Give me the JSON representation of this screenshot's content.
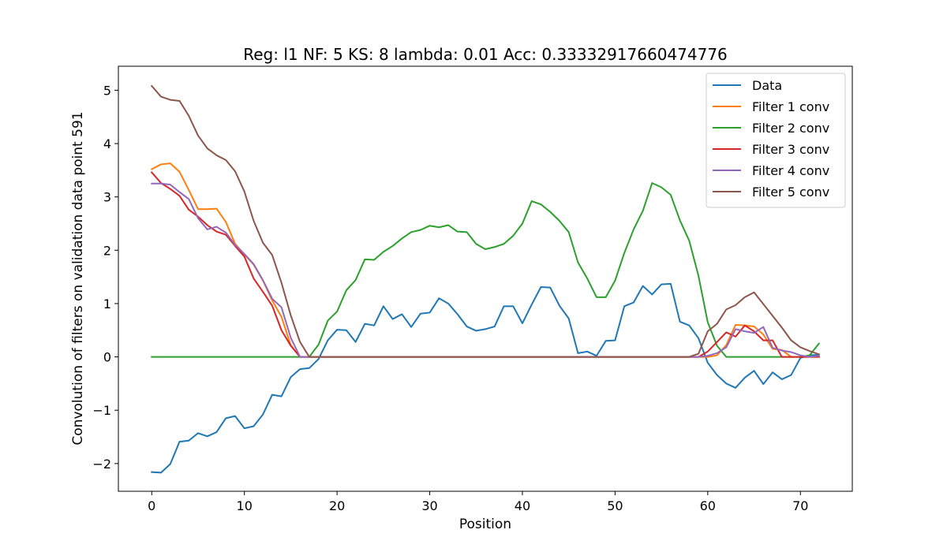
{
  "chart_data": {
    "type": "line",
    "title": "Reg: l1  NF: 5  KS: 8  lambda: 0.01 Acc: 0.33332917660474776",
    "xlabel": "Position",
    "ylabel": "Convolution of filters on validation data point 591",
    "xlim": [
      -3.6,
      75.6
    ],
    "ylim": [
      -2.52,
      5.45
    ],
    "xticks": [
      0,
      10,
      20,
      30,
      40,
      50,
      60,
      70
    ],
    "yticks": [
      -2,
      -1,
      0,
      1,
      2,
      3,
      4,
      5
    ],
    "xtick_labels": [
      "0",
      "10",
      "20",
      "30",
      "40",
      "50",
      "60",
      "70"
    ],
    "ytick_labels": [
      "−2",
      "−1",
      "0",
      "1",
      "2",
      "3",
      "4",
      "5"
    ],
    "grid": false,
    "legend_position": "upper right",
    "series": [
      {
        "name": "Data",
        "color": "#1f77b4",
        "x": [
          0,
          1,
          2,
          3,
          4,
          5,
          6,
          7,
          8,
          9,
          10,
          11,
          12,
          13,
          14,
          15,
          16,
          17,
          18,
          19,
          20,
          21,
          22,
          23,
          24,
          25,
          26,
          27,
          28,
          29,
          30,
          31,
          32,
          33,
          34,
          35,
          36,
          37,
          38,
          39,
          40,
          41,
          42,
          43,
          44,
          45,
          46,
          47,
          48,
          49,
          50,
          51,
          52,
          53,
          54,
          55,
          56,
          57,
          58,
          59,
          60,
          61,
          62,
          63,
          64,
          65,
          66,
          67,
          68,
          69,
          70,
          71,
          72
        ],
        "values": [
          -2.16,
          -2.17,
          -2.01,
          -1.59,
          -1.57,
          -1.43,
          -1.49,
          -1.41,
          -1.15,
          -1.11,
          -1.34,
          -1.3,
          -1.08,
          -0.71,
          -0.74,
          -0.38,
          -0.23,
          -0.21,
          -0.04,
          0.31,
          0.51,
          0.5,
          0.28,
          0.62,
          0.59,
          0.95,
          0.71,
          0.8,
          0.56,
          0.81,
          0.83,
          1.1,
          1.0,
          0.8,
          0.57,
          0.49,
          0.52,
          0.57,
          0.95,
          0.95,
          0.63,
          0.98,
          1.31,
          1.3,
          0.96,
          0.72,
          0.07,
          0.1,
          0.02,
          0.3,
          0.31,
          0.95,
          1.02,
          1.33,
          1.17,
          1.36,
          1.37,
          0.66,
          0.59,
          0.35,
          -0.11,
          -0.34,
          -0.5,
          -0.58,
          -0.39,
          -0.26,
          -0.51,
          -0.29,
          -0.42,
          -0.34,
          -0.02,
          0.03,
          0.04
        ]
      },
      {
        "name": "Filter 1 conv",
        "color": "#ff7f0e",
        "x": [
          0,
          1,
          2,
          3,
          4,
          5,
          6,
          7,
          8,
          9,
          10,
          11,
          12,
          13,
          14,
          15,
          16,
          17,
          18,
          19,
          20,
          21,
          22,
          23,
          24,
          25,
          26,
          27,
          28,
          29,
          30,
          31,
          32,
          33,
          34,
          35,
          36,
          37,
          38,
          39,
          40,
          41,
          42,
          43,
          44,
          45,
          46,
          47,
          48,
          49,
          50,
          51,
          52,
          53,
          54,
          55,
          56,
          57,
          58,
          59,
          60,
          61,
          62,
          63,
          64,
          65,
          66,
          67,
          68,
          69,
          70,
          71,
          72
        ],
        "values": [
          3.52,
          3.61,
          3.63,
          3.47,
          3.13,
          2.77,
          2.77,
          2.78,
          2.53,
          2.12,
          1.92,
          1.73,
          1.43,
          1.06,
          0.75,
          0.22,
          0,
          0,
          0,
          0,
          0,
          0,
          0,
          0,
          0,
          0,
          0,
          0,
          0,
          0,
          0,
          0,
          0,
          0,
          0,
          0,
          0,
          0,
          0,
          0,
          0,
          0,
          0,
          0,
          0,
          0,
          0,
          0,
          0,
          0,
          0,
          0,
          0,
          0,
          0,
          0,
          0,
          0,
          0,
          0,
          0,
          0.03,
          0.22,
          0.6,
          0.59,
          0.57,
          0.42,
          0.15,
          0.13,
          0,
          0,
          0,
          0
        ]
      },
      {
        "name": "Filter 2 conv",
        "color": "#2ca02c",
        "x": [
          0,
          1,
          2,
          3,
          4,
          5,
          6,
          7,
          8,
          9,
          10,
          11,
          12,
          13,
          14,
          15,
          16,
          17,
          18,
          19,
          20,
          21,
          22,
          23,
          24,
          25,
          26,
          27,
          28,
          29,
          30,
          31,
          32,
          33,
          34,
          35,
          36,
          37,
          38,
          39,
          40,
          41,
          42,
          43,
          44,
          45,
          46,
          47,
          48,
          49,
          50,
          51,
          52,
          53,
          54,
          55,
          56,
          57,
          58,
          59,
          60,
          61,
          62,
          63,
          64,
          65,
          66,
          67,
          68,
          69,
          70,
          71,
          72
        ],
        "values": [
          0,
          0,
          0,
          0,
          0,
          0,
          0,
          0,
          0,
          0,
          0,
          0,
          0,
          0,
          0,
          0,
          0,
          0,
          0.23,
          0.68,
          0.85,
          1.25,
          1.44,
          1.83,
          1.82,
          1.97,
          2.08,
          2.22,
          2.34,
          2.38,
          2.46,
          2.43,
          2.47,
          2.35,
          2.34,
          2.12,
          2.02,
          2.06,
          2.12,
          2.27,
          2.5,
          2.92,
          2.86,
          2.72,
          2.55,
          2.34,
          1.77,
          1.47,
          1.12,
          1.12,
          1.43,
          1.95,
          2.39,
          2.74,
          3.26,
          3.18,
          3.04,
          2.56,
          2.18,
          1.52,
          0.65,
          0.21,
          0,
          0,
          0,
          0,
          0,
          0,
          0,
          0,
          0,
          0.03,
          0.25
        ]
      },
      {
        "name": "Filter 3 conv",
        "color": "#d62728",
        "x": [
          0,
          1,
          2,
          3,
          4,
          5,
          6,
          7,
          8,
          9,
          10,
          11,
          12,
          13,
          14,
          15,
          16,
          17,
          18,
          19,
          20,
          21,
          22,
          23,
          24,
          25,
          26,
          27,
          28,
          29,
          30,
          31,
          32,
          33,
          34,
          35,
          36,
          37,
          38,
          39,
          40,
          41,
          42,
          43,
          44,
          45,
          46,
          47,
          48,
          49,
          50,
          51,
          52,
          53,
          54,
          55,
          56,
          57,
          58,
          59,
          60,
          61,
          62,
          63,
          64,
          65,
          66,
          67,
          68,
          69,
          70,
          71,
          72
        ],
        "values": [
          3.46,
          3.26,
          3.15,
          3.02,
          2.76,
          2.63,
          2.47,
          2.35,
          2.29,
          2.08,
          1.88,
          1.47,
          1.22,
          0.96,
          0.5,
          0.21,
          0,
          0,
          0,
          0,
          0,
          0,
          0,
          0,
          0,
          0,
          0,
          0,
          0,
          0,
          0,
          0,
          0,
          0,
          0,
          0,
          0,
          0,
          0,
          0,
          0,
          0,
          0,
          0,
          0,
          0,
          0,
          0,
          0,
          0,
          0,
          0,
          0,
          0,
          0,
          0,
          0,
          0,
          0,
          0,
          0.1,
          0.28,
          0.46,
          0.38,
          0.59,
          0.48,
          0.31,
          0.31,
          0,
          0,
          0,
          0,
          0
        ]
      },
      {
        "name": "Filter 4 conv",
        "color": "#9467bd",
        "x": [
          0,
          1,
          2,
          3,
          4,
          5,
          6,
          7,
          8,
          9,
          10,
          11,
          12,
          13,
          14,
          15,
          16,
          17,
          18,
          19,
          20,
          21,
          22,
          23,
          24,
          25,
          26,
          27,
          28,
          29,
          30,
          31,
          32,
          33,
          34,
          35,
          36,
          37,
          38,
          39,
          40,
          41,
          42,
          43,
          44,
          45,
          46,
          47,
          48,
          49,
          50,
          51,
          52,
          53,
          54,
          55,
          56,
          57,
          58,
          59,
          60,
          61,
          62,
          63,
          64,
          65,
          66,
          67,
          68,
          69,
          70,
          71,
          72
        ],
        "values": [
          3.25,
          3.25,
          3.23,
          3.09,
          2.96,
          2.6,
          2.39,
          2.44,
          2.33,
          2.1,
          1.93,
          1.74,
          1.44,
          1.09,
          0.93,
          0.36,
          0,
          0,
          0,
          0,
          0,
          0,
          0,
          0,
          0,
          0,
          0,
          0,
          0,
          0,
          0,
          0,
          0,
          0,
          0,
          0,
          0,
          0,
          0,
          0,
          0,
          0,
          0,
          0,
          0,
          0,
          0,
          0,
          0,
          0,
          0,
          0,
          0,
          0,
          0,
          0,
          0,
          0,
          0,
          0,
          0.02,
          0.07,
          0.18,
          0.52,
          0.48,
          0.45,
          0.56,
          0.17,
          0.12,
          0.09,
          0.03,
          0,
          0.02
        ]
      },
      {
        "name": "Filter 5 conv",
        "color": "#8c564b",
        "x": [
          0,
          1,
          2,
          3,
          4,
          5,
          6,
          7,
          8,
          9,
          10,
          11,
          12,
          13,
          14,
          15,
          16,
          17,
          18,
          19,
          20,
          21,
          22,
          23,
          24,
          25,
          26,
          27,
          28,
          29,
          30,
          31,
          32,
          33,
          34,
          35,
          36,
          37,
          38,
          39,
          40,
          41,
          42,
          43,
          44,
          45,
          46,
          47,
          48,
          49,
          50,
          51,
          52,
          53,
          54,
          55,
          56,
          57,
          58,
          59,
          60,
          61,
          62,
          63,
          64,
          65,
          66,
          67,
          68,
          69,
          70,
          71,
          72
        ],
        "values": [
          5.08,
          4.88,
          4.82,
          4.8,
          4.52,
          4.15,
          3.91,
          3.78,
          3.69,
          3.48,
          3.1,
          2.55,
          2.14,
          1.91,
          1.39,
          0.78,
          0.28,
          0,
          0,
          0,
          0,
          0,
          0,
          0,
          0,
          0,
          0,
          0,
          0,
          0,
          0,
          0,
          0,
          0,
          0,
          0,
          0,
          0,
          0,
          0,
          0,
          0,
          0,
          0,
          0,
          0,
          0,
          0,
          0,
          0,
          0,
          0,
          0,
          0,
          0,
          0,
          0,
          0,
          0,
          0.06,
          0.48,
          0.62,
          0.89,
          0.97,
          1.12,
          1.21,
          0.99,
          0.77,
          0.55,
          0.31,
          0.18,
          0.11,
          0.05
        ]
      }
    ]
  }
}
